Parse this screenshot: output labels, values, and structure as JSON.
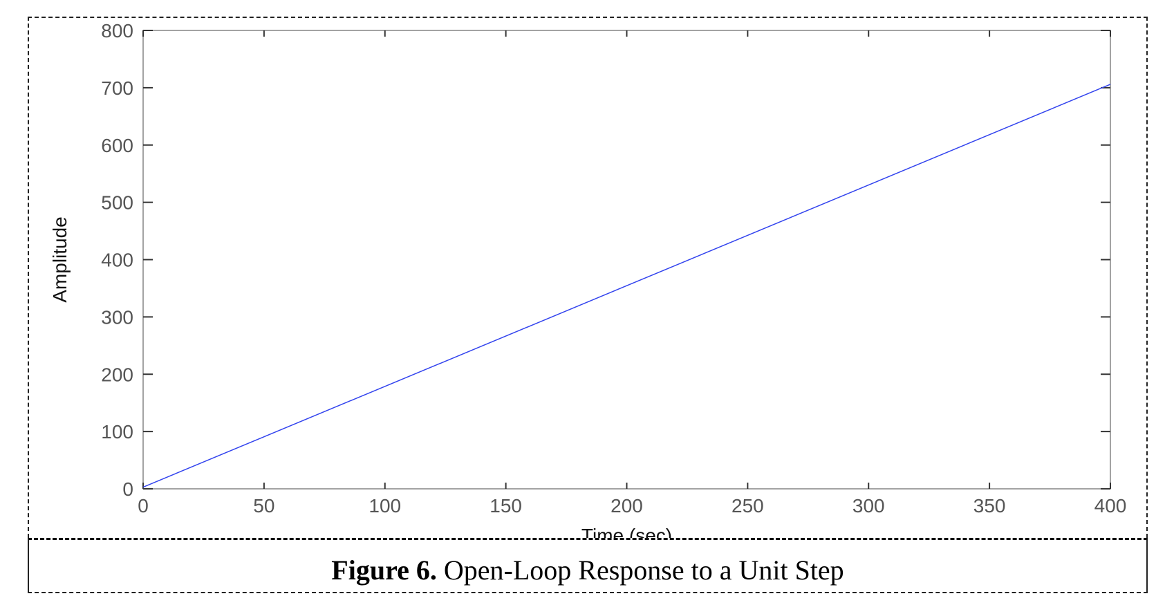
{
  "figure": {
    "caption_number": "Figure 6.",
    "caption_text": "Open-Loop Response to a Unit Step"
  },
  "chart_data": {
    "type": "line",
    "title": "",
    "xlabel": "Time (sec)",
    "ylabel": "Amplitude",
    "xlim": [
      0,
      400
    ],
    "ylim": [
      0,
      800
    ],
    "xticks": [
      0,
      50,
      100,
      150,
      200,
      250,
      300,
      350,
      400
    ],
    "yticks": [
      0,
      100,
      200,
      300,
      400,
      500,
      600,
      700,
      800
    ],
    "grid": false,
    "series": [
      {
        "color": "#3344ee",
        "x": [
          0,
          400
        ],
        "y": [
          3,
          706
        ]
      }
    ]
  }
}
